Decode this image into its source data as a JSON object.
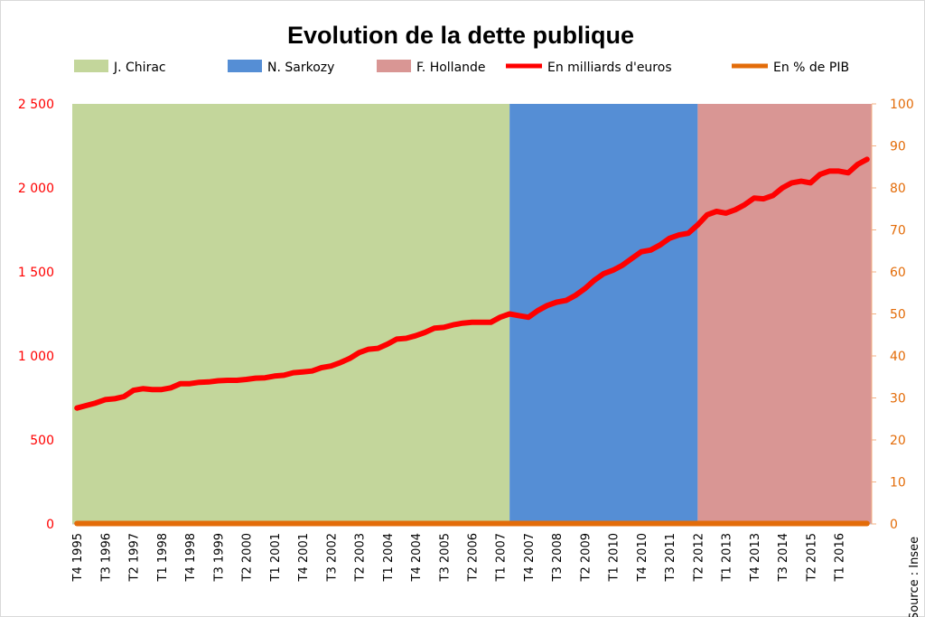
{
  "chart_data": {
    "type": "line",
    "title": "Evolution  de la dette publique",
    "source": "Source : Insee",
    "legend_position": "top",
    "grid": false,
    "periods": [
      {
        "name": "J. Chirac",
        "start": "T4 1995",
        "end": "T2 2007",
        "color": "#c3d69b"
      },
      {
        "name": "N. Sarkozy",
        "start": "T2 2007",
        "end": "T2 2012",
        "color": "#558ed5"
      },
      {
        "name": "F. Hollande",
        "start": "T2 2012",
        "end": "T4 2016",
        "color": "#d99694"
      }
    ],
    "x_tick_labels": [
      "T4 1995",
      "T3 1996",
      "T2 1997",
      "T1 1998",
      "T4 1998",
      "T3 1999",
      "T2 2000",
      "T1 2001",
      "T4 2001",
      "T3 2002",
      "T2 2003",
      "T1 2004",
      "T4 2004",
      "T3 2005",
      "T2 2006",
      "T1 2007",
      "T4 2007",
      "T3 2008",
      "T2 2009",
      "T1 2010",
      "T4 2010",
      "T3 2011",
      "T2 2012",
      "T1 2013",
      "T4 2013",
      "T3 2014",
      "T2 2015",
      "T1 2016"
    ],
    "x": [
      "T4 1995",
      "T1 1996",
      "T2 1996",
      "T3 1996",
      "T4 1996",
      "T1 1997",
      "T2 1997",
      "T3 1997",
      "T4 1997",
      "T1 1998",
      "T2 1998",
      "T3 1998",
      "T4 1998",
      "T1 1999",
      "T2 1999",
      "T3 1999",
      "T4 1999",
      "T1 2000",
      "T2 2000",
      "T3 2000",
      "T4 2000",
      "T1 2001",
      "T2 2001",
      "T3 2001",
      "T4 2001",
      "T1 2002",
      "T2 2002",
      "T3 2002",
      "T4 2002",
      "T1 2003",
      "T2 2003",
      "T3 2003",
      "T4 2003",
      "T1 2004",
      "T2 2004",
      "T3 2004",
      "T4 2004",
      "T1 2005",
      "T2 2005",
      "T3 2005",
      "T4 2005",
      "T1 2006",
      "T2 2006",
      "T3 2006",
      "T4 2006",
      "T1 2007",
      "T2 2007",
      "T3 2007",
      "T4 2007",
      "T1 2008",
      "T2 2008",
      "T3 2008",
      "T4 2008",
      "T1 2009",
      "T2 2009",
      "T3 2009",
      "T4 2009",
      "T1 2010",
      "T2 2010",
      "T3 2010",
      "T4 2010",
      "T1 2011",
      "T2 2011",
      "T3 2011",
      "T4 2011",
      "T1 2012",
      "T2 2012",
      "T3 2012",
      "T4 2012",
      "T1 2013",
      "T2 2013",
      "T3 2013",
      "T4 2013",
      "T1 2014",
      "T2 2014",
      "T3 2014",
      "T4 2014",
      "T1 2015",
      "T2 2015",
      "T3 2015",
      "T4 2015",
      "T1 2016",
      "T2 2016",
      "T3 2016",
      "T4 2016"
    ],
    "y_left": {
      "ylim": [
        0,
        2500
      ],
      "ticks": [
        "0",
        "500",
        "1 000",
        "1 500",
        "2 000",
        "2 500"
      ],
      "tick_values": [
        0,
        500,
        1000,
        1500,
        2000,
        2500
      ],
      "color": "#ff0000"
    },
    "y_right": {
      "ylim": [
        0,
        100
      ],
      "ticks": [
        "0",
        "10",
        "20",
        "30",
        "40",
        "50",
        "60",
        "70",
        "80",
        "90",
        "100"
      ],
      "tick_values": [
        0,
        10,
        20,
        30,
        40,
        50,
        60,
        70,
        80,
        90,
        100
      ],
      "color": "#e36c09"
    },
    "series": [
      {
        "name": "En milliards d'euros",
        "axis": "left",
        "color": "#ff0000",
        "values": [
          690,
          705,
          720,
          740,
          745,
          758,
          795,
          805,
          800,
          800,
          810,
          835,
          835,
          843,
          845,
          852,
          855,
          855,
          860,
          868,
          870,
          880,
          885,
          900,
          905,
          910,
          930,
          940,
          960,
          985,
          1020,
          1040,
          1045,
          1070,
          1100,
          1105,
          1120,
          1140,
          1165,
          1170,
          1185,
          1195,
          1200,
          1200,
          1200,
          1230,
          1250,
          1240,
          1230,
          1270,
          1300,
          1320,
          1330,
          1360,
          1400,
          1450,
          1490,
          1510,
          1540,
          1580,
          1620,
          1630,
          1660,
          1700,
          1720,
          1730,
          1780,
          1840,
          1860,
          1850,
          1870,
          1900,
          1940,
          1935,
          1955,
          2000,
          2030,
          2040,
          2030,
          2080,
          2100,
          2100,
          2090,
          2140,
          2170
        ]
      },
      {
        "name": "En % de PIB",
        "axis": "right",
        "color": "#e36c09",
        "values": [
          0.1,
          0.1,
          0.1,
          0.1,
          0.1,
          0.1,
          0.1,
          0.1,
          0.1,
          0.1,
          0.1,
          0.1,
          0.1,
          0.1,
          0.1,
          0.1,
          0.1,
          0.1,
          0.1,
          0.1,
          0.1,
          0.1,
          0.1,
          0.1,
          0.1,
          0.1,
          0.1,
          0.1,
          0.1,
          0.1,
          0.1,
          0.1,
          0.1,
          0.1,
          0.1,
          0.1,
          0.1,
          0.1,
          0.1,
          0.1,
          0.1,
          0.1,
          0.1,
          0.1,
          0.1,
          0.1,
          0.1,
          0.1,
          0.1,
          0.1,
          0.1,
          0.1,
          0.1,
          0.1,
          0.1,
          0.1,
          0.1,
          0.1,
          0.1,
          0.1,
          0.1,
          0.1,
          0.1,
          0.1,
          0.1,
          0.1,
          0.1,
          0.1,
          0.1,
          0.1,
          0.1,
          0.1,
          0.1,
          0.1,
          0.1,
          0.1,
          0.1,
          0.1,
          0.1,
          0.1,
          0.1,
          0.1,
          0.1,
          0.1,
          0.1
        ]
      }
    ]
  }
}
